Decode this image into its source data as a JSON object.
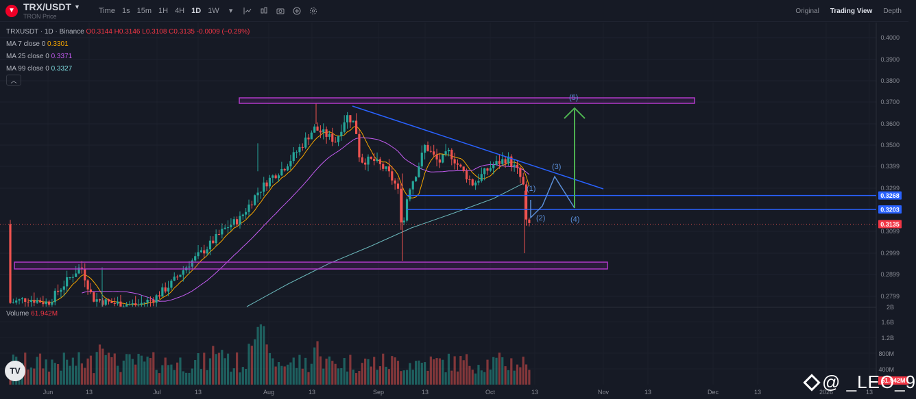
{
  "header": {
    "symbol": "TRX/USDT",
    "subtitle": "TRON Price",
    "timeframes": [
      "Time",
      "1s",
      "15m",
      "1H",
      "4H",
      "1D",
      "1W"
    ],
    "active_timeframe": "1D",
    "view_tabs": [
      "Original",
      "Trading View",
      "Depth"
    ],
    "active_view": "Trading View"
  },
  "legend": {
    "pair_info": "TRXUSDT · 1D · Binance",
    "ohlc": "O0.3144 H0.3146 L0.3108 C0.3135 -0.0009 (−0.29%)",
    "ma7_label": "MA 7 close 0",
    "ma7_value": "0.3301",
    "ma25_label": "MA 25 close 0",
    "ma25_value": "0.3371",
    "ma99_label": "MA 99 close 0",
    "ma99_value": "0.3327",
    "collapse_icon": "chevron-up-icon"
  },
  "volume": {
    "label": "Volume",
    "value": "61.942M"
  },
  "price_axis": [
    "0.4000",
    "0.3900",
    "0.3800",
    "0.3700",
    "0.3600",
    "0.3500",
    "0.3399",
    "0.3299",
    "0.3099",
    "0.2999",
    "0.2899",
    "0.2799"
  ],
  "price_tags": {
    "level_a": "0.3268",
    "level_b": "0.3203",
    "last": "0.3135",
    "vol_last": "61.942M"
  },
  "volume_axis": [
    "2B",
    "1.6B",
    "1.2B",
    "800M",
    "400M"
  ],
  "time_axis": [
    "Jun",
    "13",
    "Jul",
    "13",
    "Aug",
    "13",
    "Sep",
    "13",
    "Oct",
    "13",
    "Nov",
    "13",
    "Dec",
    "13",
    "2026",
    "13"
  ],
  "waves": [
    "(1)",
    "(2)",
    "(3)",
    "(4)",
    "(5)"
  ],
  "watermark": "@ _LEO_9",
  "colors": {
    "up": "#26a69a",
    "down": "#ef5350",
    "trendline": "#2962ff",
    "zone": "#9c27b0",
    "target_arrow": "#4caf50",
    "ma7": "#f7a600",
    "ma25": "#c45cf2",
    "ma99": "#7fdde0"
  },
  "chart_data": {
    "type": "candlestick",
    "x": [
      "Jun",
      "Jul",
      "Aug",
      "Sep",
      "Oct",
      "Nov",
      "Dec",
      "2026"
    ],
    "ylim": [
      0.275,
      0.405
    ],
    "grid": true,
    "annotations": [
      "resistance-zone 0.3700",
      "support-zone 0.2935",
      "descending trendline from 0.3680",
      "horizontal 0.3268",
      "horizontal 0.3203",
      "elliott waves (1)-(5)"
    ],
    "last_close": 0.3135
  }
}
